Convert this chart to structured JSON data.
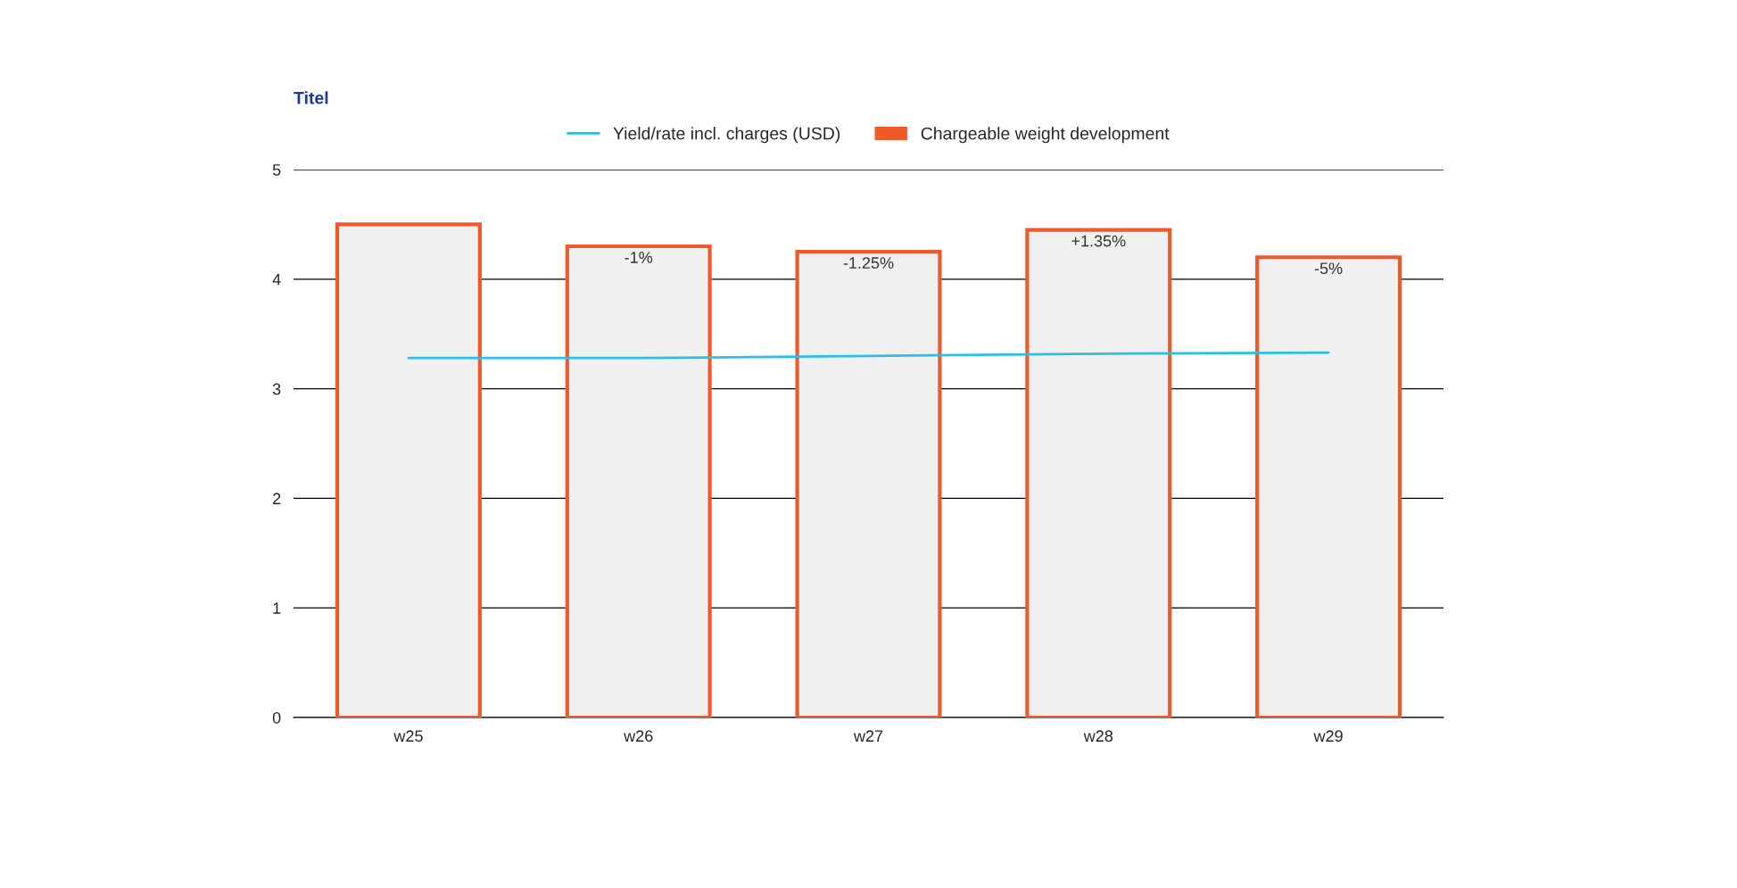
{
  "chart_data": {
    "type": "bar",
    "title": "Titel",
    "categories": [
      "w25",
      "w26",
      "w27",
      "w28",
      "w29"
    ],
    "series": [
      {
        "name": "Yield/rate incl. charges (USD)",
        "type": "line",
        "color": "#29c0e8",
        "values": [
          3.28,
          3.28,
          3.3,
          3.32,
          3.33
        ]
      },
      {
        "name": "Chargeable weight development",
        "color": "#f05a28",
        "values": [
          4.5,
          4.3,
          4.25,
          4.45,
          4.2
        ]
      }
    ],
    "annotations": [
      {
        "text": "-1%",
        "x": "w26",
        "y": 4.3
      },
      {
        "text": "-1.25%",
        "x": "w27",
        "y": 4.25
      },
      {
        "text": "+1.35%",
        "x": "w28",
        "y": 4.45
      },
      {
        "text": "-5%",
        "x": "w29",
        "y": 4.2
      }
    ],
    "ylim": [
      0,
      5
    ],
    "yticks": [
      0,
      1,
      2,
      3,
      4,
      5
    ],
    "grid": "y",
    "legend": "top"
  }
}
